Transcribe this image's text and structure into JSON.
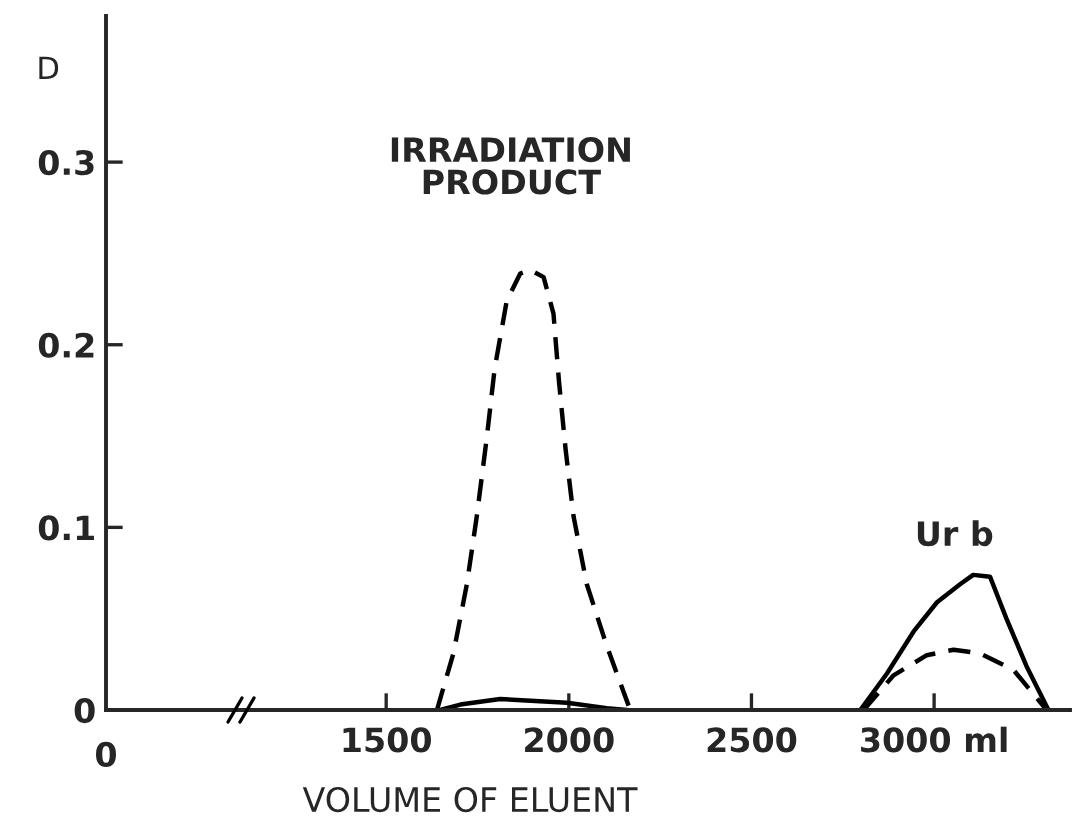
{
  "chart_data": {
    "type": "line",
    "xlabel": "VOLUME OF ELUENT",
    "ylabel": "D",
    "xlim": [
      733,
      3372
    ],
    "xticks": [
      1500,
      2000,
      2500,
      {
        "value": 3000,
        "label": "3000 ml"
      }
    ],
    "ylim": [
      0,
      0.38
    ],
    "yticks": [
      0,
      0.1,
      0.2,
      0.3
    ],
    "series": [
      {
        "color": "#000000",
        "line_style": "dashed",
        "x": [
          1639,
          1684,
          1721,
          1748,
          1776,
          1797,
          1830,
          1867,
          1894,
          1931,
          1958,
          1973,
          1991,
          2013,
          2049,
          2104,
          2168
        ],
        "values": [
          0,
          0.031,
          0.069,
          0.106,
          0.15,
          0.187,
          0.224,
          0.239,
          0.241,
          0.237,
          0.217,
          0.18,
          0.143,
          0.106,
          0.069,
          0.035,
          0
        ]
      },
      {
        "color": "#000000",
        "line_style": "solid",
        "x": [
          1648,
          1703,
          1812,
          1995,
          2104,
          2159
        ],
        "values": [
          0,
          0.003,
          0.006,
          0.004,
          0.001,
          0
        ]
      },
      {
        "color": "#000000",
        "line_style": "solid",
        "x": [
          2798,
          2871,
          2944,
          3008,
          3072,
          3107,
          3153,
          3198,
          3253,
          3313
        ],
        "values": [
          0,
          0.02,
          0.043,
          0.059,
          0.069,
          0.074,
          0.073,
          0.05,
          0.024,
          0
        ]
      },
      {
        "color": "#000000",
        "line_style": "dashed",
        "x": [
          2807,
          2889,
          2980,
          3053,
          3126,
          3217,
          3308
        ],
        "values": [
          0,
          0.019,
          0.03,
          0.033,
          0.031,
          0.022,
          0
        ]
      }
    ],
    "annotations": [
      "IRRADIATION\nPRODUCT",
      "Ur b",
      "0"
    ]
  }
}
